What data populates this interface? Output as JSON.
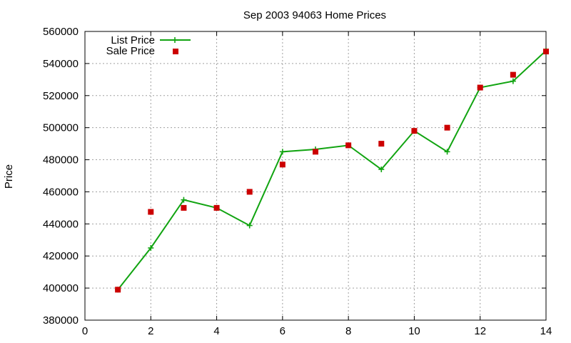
{
  "chart_data": {
    "type": "line",
    "title": "Sep 2003 94063 Home Prices",
    "xlabel": "",
    "ylabel": "Price",
    "xlim": [
      0,
      14
    ],
    "ylim": [
      380000,
      560000
    ],
    "x_ticks": [
      0,
      2,
      4,
      6,
      8,
      10,
      12,
      14
    ],
    "y_ticks": [
      380000,
      400000,
      420000,
      440000,
      460000,
      480000,
      500000,
      520000,
      540000,
      560000
    ],
    "grid": true,
    "legend_position": "top-left",
    "series": [
      {
        "name": "List Price",
        "style": "line+cross",
        "color": "#11a411",
        "x": [
          1,
          2,
          3,
          4,
          5,
          6,
          7,
          8,
          9,
          10,
          11,
          12,
          13,
          14
        ],
        "values": [
          399000,
          425000,
          455000,
          450000,
          439000,
          485000,
          486500,
          489000,
          474000,
          498000,
          485000,
          525000,
          529000,
          548000
        ]
      },
      {
        "name": "Sale Price",
        "style": "square",
        "color": "#cc0000",
        "x": [
          1,
          2,
          3,
          4,
          5,
          6,
          7,
          8,
          9,
          10,
          11,
          12,
          13,
          14
        ],
        "values": [
          399000,
          447500,
          450000,
          450000,
          460000,
          477000,
          485000,
          489000,
          490000,
          498000,
          500000,
          525000,
          533000,
          547500
        ]
      }
    ]
  }
}
